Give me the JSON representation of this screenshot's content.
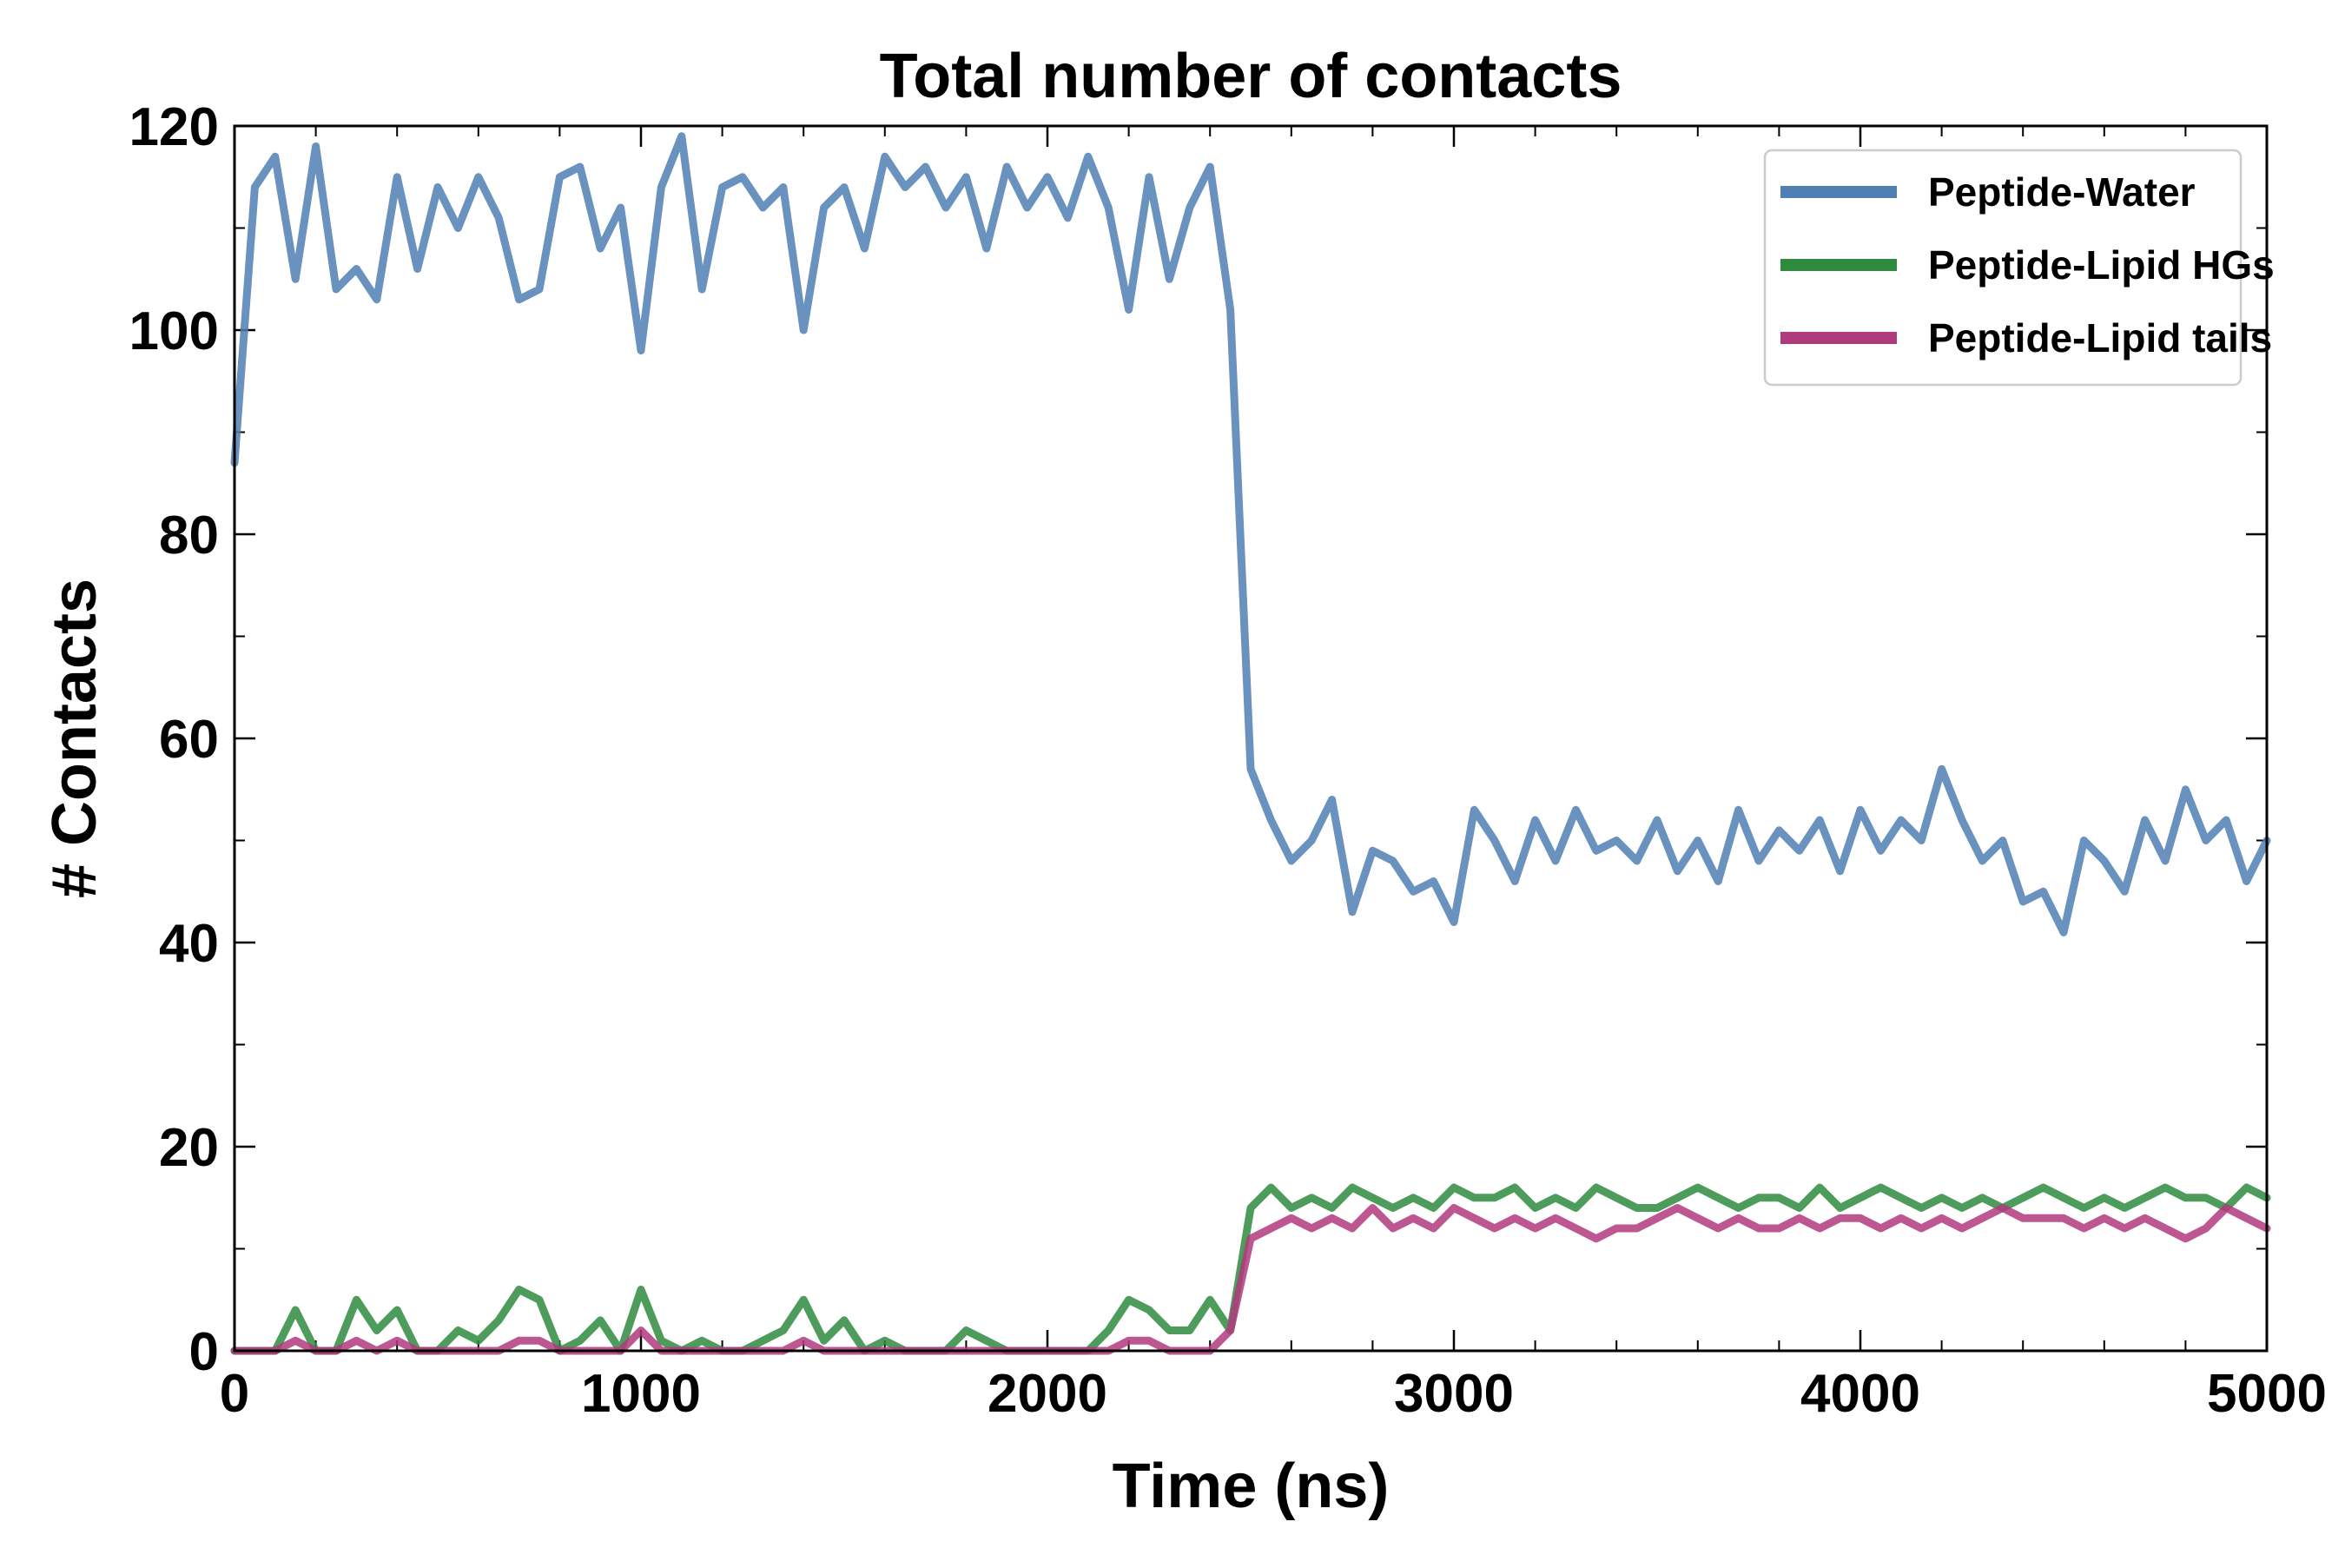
{
  "chart_data": {
    "type": "line",
    "title": "Total number of contacts",
    "xlabel": "Time (ns)",
    "ylabel": "# Contacts",
    "xlim": [
      0,
      5000
    ],
    "ylim": [
      0,
      120
    ],
    "xticks": [
      0,
      1000,
      2000,
      3000,
      4000,
      5000
    ],
    "yticks": [
      0,
      20,
      40,
      60,
      80,
      100,
      120
    ],
    "grid": false,
    "legend_position": "top-right",
    "x": [
      0,
      50,
      100,
      150,
      200,
      250,
      300,
      350,
      400,
      450,
      500,
      550,
      600,
      650,
      700,
      750,
      800,
      850,
      900,
      950,
      1000,
      1050,
      1100,
      1150,
      1200,
      1250,
      1300,
      1350,
      1400,
      1450,
      1500,
      1550,
      1600,
      1650,
      1700,
      1750,
      1800,
      1850,
      1900,
      1950,
      2000,
      2050,
      2100,
      2150,
      2200,
      2250,
      2300,
      2350,
      2400,
      2450,
      2500,
      2550,
      2600,
      2650,
      2700,
      2750,
      2800,
      2850,
      2900,
      2950,
      3000,
      3050,
      3100,
      3150,
      3200,
      3250,
      3300,
      3350,
      3400,
      3450,
      3500,
      3550,
      3600,
      3650,
      3700,
      3750,
      3800,
      3850,
      3900,
      3950,
      4000,
      4050,
      4100,
      4150,
      4200,
      4250,
      4300,
      4350,
      4400,
      4450,
      4500,
      4550,
      4600,
      4650,
      4700,
      4750,
      4800,
      4850,
      4900,
      4950,
      5000
    ],
    "series": [
      {
        "name": "Peptide-Water",
        "color": "#4f7fb3",
        "values": [
          87,
          114,
          117,
          105,
          118,
          104,
          106,
          103,
          115,
          106,
          114,
          110,
          115,
          111,
          103,
          104,
          115,
          116,
          108,
          112,
          98,
          114,
          119,
          104,
          114,
          115,
          112,
          114,
          100,
          112,
          114,
          108,
          117,
          114,
          116,
          112,
          115,
          108,
          116,
          112,
          115,
          111,
          117,
          112,
          102,
          115,
          105,
          112,
          116,
          102,
          57,
          52,
          48,
          50,
          54,
          43,
          49,
          48,
          45,
          46,
          42,
          53,
          50,
          46,
          52,
          48,
          53,
          49,
          50,
          48,
          52,
          47,
          50,
          46,
          53,
          48,
          51,
          49,
          52,
          47,
          53,
          49,
          52,
          50,
          57,
          52,
          48,
          50,
          44,
          45,
          41,
          50,
          48,
          45,
          52,
          48,
          55,
          50,
          52,
          46,
          50
        ]
      },
      {
        "name": "Peptide-Lipid HGs",
        "color": "#2e8b3e",
        "values": [
          0,
          0,
          0,
          4,
          0,
          0,
          5,
          2,
          4,
          0,
          0,
          2,
          1,
          3,
          6,
          5,
          0,
          1,
          3,
          0,
          6,
          1,
          0,
          1,
          0,
          0,
          1,
          2,
          5,
          1,
          3,
          0,
          1,
          0,
          0,
          0,
          2,
          1,
          0,
          0,
          0,
          0,
          0,
          2,
          5,
          4,
          2,
          2,
          5,
          2,
          14,
          16,
          14,
          15,
          14,
          16,
          15,
          14,
          15,
          14,
          16,
          15,
          15,
          16,
          14,
          15,
          14,
          16,
          15,
          14,
          14,
          15,
          16,
          15,
          14,
          15,
          15,
          14,
          16,
          14,
          15,
          16,
          15,
          14,
          15,
          14,
          15,
          14,
          15,
          16,
          15,
          14,
          15,
          14,
          15,
          16,
          15,
          15,
          14,
          16,
          15
        ]
      },
      {
        "name": "Peptide-Lipid tails",
        "color": "#b03a7e",
        "values": [
          0,
          0,
          0,
          1,
          0,
          0,
          1,
          0,
          1,
          0,
          0,
          0,
          0,
          0,
          1,
          1,
          0,
          0,
          0,
          0,
          2,
          0,
          0,
          0,
          0,
          0,
          0,
          0,
          1,
          0,
          0,
          0,
          0,
          0,
          0,
          0,
          0,
          0,
          0,
          0,
          0,
          0,
          0,
          0,
          1,
          1,
          0,
          0,
          0,
          2,
          11,
          12,
          13,
          12,
          13,
          12,
          14,
          12,
          13,
          12,
          14,
          13,
          12,
          13,
          12,
          13,
          12,
          11,
          12,
          12,
          13,
          14,
          13,
          12,
          13,
          12,
          12,
          13,
          12,
          13,
          13,
          12,
          13,
          12,
          13,
          12,
          13,
          14,
          13,
          13,
          13,
          12,
          13,
          12,
          13,
          12,
          11,
          12,
          14,
          13,
          12
        ]
      }
    ]
  }
}
